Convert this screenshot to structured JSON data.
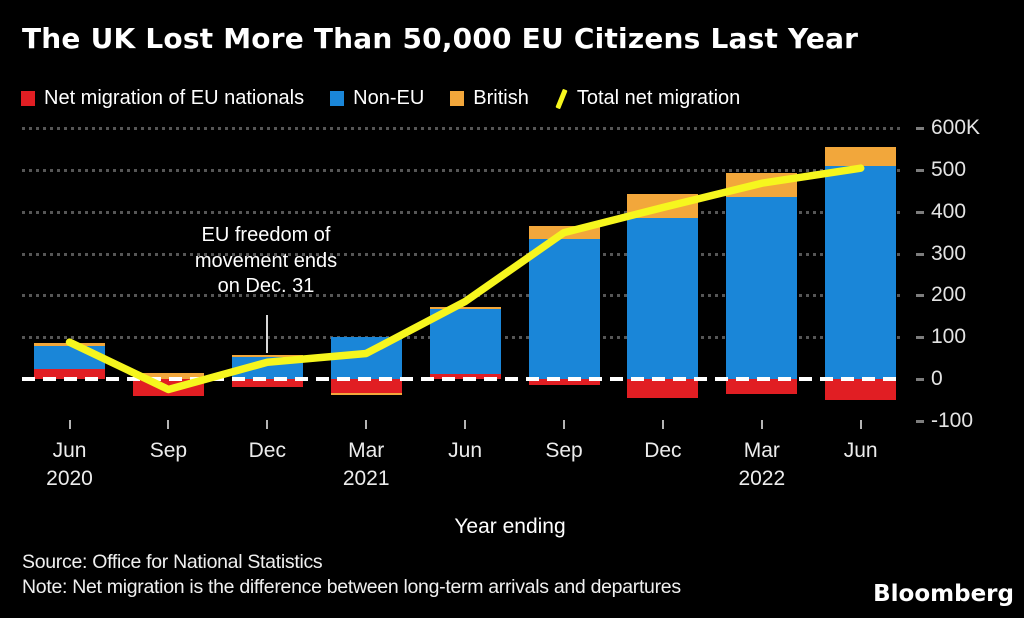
{
  "title": "The UK Lost More Than 50,000 EU Citizens Last Year",
  "legend": [
    {
      "label": "Net migration of EU nationals",
      "color": "#e11e23",
      "type": "square"
    },
    {
      "label": "Non-EU",
      "color": "#1a86d8",
      "type": "square"
    },
    {
      "label": "British",
      "color": "#f2a73b",
      "type": "square"
    },
    {
      "label": "Total net migration",
      "color": "#f6f61e",
      "type": "slash"
    }
  ],
  "chart_data": {
    "type": "bar",
    "subtype": "stacked-bar-with-line",
    "unit": "thousands of people",
    "categories": [
      "Jun 2020",
      "Sep 2020",
      "Dec 2020",
      "Mar 2021",
      "Jun 2021",
      "Sep 2021",
      "Dec 2021",
      "Mar 2022",
      "Jun 2022"
    ],
    "x_tick_display": [
      [
        "Jun",
        "2020"
      ],
      [
        "Sep",
        ""
      ],
      [
        "Dec",
        ""
      ],
      [
        "Mar",
        "2021"
      ],
      [
        "Jun",
        ""
      ],
      [
        "Sep",
        ""
      ],
      [
        "Dec",
        ""
      ],
      [
        "Mar",
        "2022"
      ],
      [
        "Jun",
        ""
      ]
    ],
    "series": [
      {
        "name": "Net migration of EU nationals",
        "color": "#e11e23",
        "values": [
          24,
          -40,
          -18,
          -34,
          12,
          -15,
          -45,
          -35,
          -51
        ]
      },
      {
        "name": "Non-EU",
        "color": "#1a86d8",
        "values": [
          55,
          0,
          52,
          100,
          155,
          335,
          385,
          436,
          509
        ]
      },
      {
        "name": "British",
        "color": "#f2a73b",
        "values": [
          8,
          15,
          6,
          -5,
          6,
          30,
          58,
          56,
          46
        ]
      }
    ],
    "line_series": {
      "name": "Total net migration",
      "color": "#f6f61e",
      "values": [
        88,
        -25,
        40,
        61,
        185,
        350,
        410,
        468,
        504
      ]
    },
    "ylim": [
      -100,
      600
    ],
    "yticks": [
      600,
      500,
      400,
      300,
      200,
      100,
      0,
      -100
    ],
    "ytick_labels": [
      "600K",
      "500",
      "400",
      "300",
      "200",
      "100",
      "0",
      "-100"
    ],
    "xlabel": "Year ending",
    "grid": "dotted horizontal, zero line white dashed",
    "legend_position": "top"
  },
  "annotation": {
    "lines": [
      "EU freedom of",
      "movement ends",
      "on Dec. 31"
    ],
    "target_category": "Dec 2020"
  },
  "footer": {
    "source": "Source: Office for National Statistics",
    "note": "Note: Net migration is the difference between long-term arrivals and departures",
    "brand": "Bloomberg"
  }
}
